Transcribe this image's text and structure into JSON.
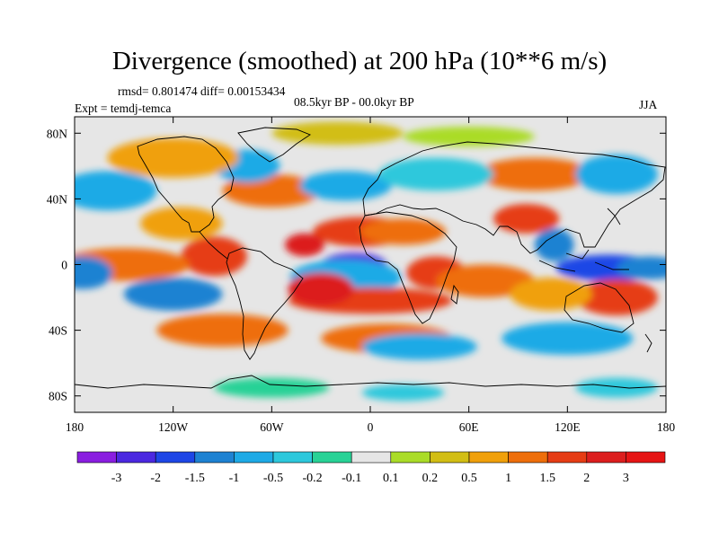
{
  "title": "Divergence (smoothed) at 200 hPa (10**6 m/s)",
  "stats": "rmsd= 0.801474 diff= 0.00153434",
  "experiment": "Expt = temdj-temca",
  "period": "08.5kyr BP - 00.0kyr BP",
  "season": "JJA",
  "axes": {
    "x_ticks": [
      "180",
      "120W",
      "60W",
      "0",
      "60E",
      "120E",
      "180"
    ],
    "x_values": [
      -180,
      -120,
      -60,
      0,
      60,
      120,
      180
    ],
    "y_ticks": [
      "80N",
      "40N",
      "0",
      "40S",
      "80S"
    ],
    "y_values": [
      80,
      40,
      0,
      -40,
      -80
    ],
    "lon_range": [
      -180,
      180
    ],
    "lat_range": [
      -90,
      90
    ]
  },
  "colorbar": {
    "labels": [
      "-3",
      "-2",
      "-1.5",
      "-1",
      "-0.5",
      "-0.2",
      "-0.1",
      "0.1",
      "0.2",
      "0.5",
      "1",
      "1.5",
      "2",
      "3"
    ],
    "colors": [
      "#8a1ee0",
      "#4b28e0",
      "#1e46e6",
      "#1e82d2",
      "#1eaae6",
      "#2dc8dc",
      "#28d296",
      "#e6e6e6",
      "#aadc28",
      "#d2be14",
      "#f0a00a",
      "#ee6e0a",
      "#e63c14",
      "#dc1e1e",
      "#e61414"
    ]
  },
  "field_regions": [
    {
      "lon": -10,
      "lat": 0,
      "sx": 20,
      "sy": 7,
      "level": 1
    },
    {
      "lon": -15,
      "lat": -8,
      "sx": 34,
      "sy": 11,
      "level": 4
    },
    {
      "lon": -5,
      "lat": 20,
      "sx": 30,
      "sy": 9,
      "level": 12
    },
    {
      "lon": -40,
      "lat": 12,
      "sx": 12,
      "sy": 7,
      "level": 13
    },
    {
      "lon": 20,
      "lat": 20,
      "sx": 26,
      "sy": 8,
      "level": 11
    },
    {
      "lon": 0,
      "lat": -22,
      "sx": 50,
      "sy": 8,
      "level": 12
    },
    {
      "lon": -30,
      "lat": -15,
      "sx": 20,
      "sy": 10,
      "level": 13
    },
    {
      "lon": 40,
      "lat": -5,
      "sx": 18,
      "sy": 10,
      "level": 12
    },
    {
      "lon": 70,
      "lat": -10,
      "sx": 30,
      "sy": 10,
      "level": 11
    },
    {
      "lon": 95,
      "lat": 28,
      "sx": 20,
      "sy": 9,
      "level": 12
    },
    {
      "lon": 112,
      "lat": 12,
      "sx": 12,
      "sy": 10,
      "level": 3
    },
    {
      "lon": 145,
      "lat": -2,
      "sx": 32,
      "sy": 8,
      "level": 2
    },
    {
      "lon": 170,
      "lat": -2,
      "sx": 20,
      "sy": 7,
      "level": 3
    },
    {
      "lon": 150,
      "lat": -20,
      "sx": 25,
      "sy": 11,
      "level": 12
    },
    {
      "lon": 110,
      "lat": -18,
      "sx": 25,
      "sy": 10,
      "level": 10
    },
    {
      "lon": -95,
      "lat": 5,
      "sx": 20,
      "sy": 12,
      "level": 12
    },
    {
      "lon": -115,
      "lat": 25,
      "sx": 25,
      "sy": 10,
      "level": 10
    },
    {
      "lon": -150,
      "lat": 0,
      "sx": 40,
      "sy": 10,
      "level": 11
    },
    {
      "lon": -175,
      "lat": -5,
      "sx": 18,
      "sy": 10,
      "level": 3
    },
    {
      "lon": -120,
      "lat": -18,
      "sx": 30,
      "sy": 10,
      "level": 3
    },
    {
      "lon": -90,
      "lat": -40,
      "sx": 40,
      "sy": 10,
      "level": 11
    },
    {
      "lon": 10,
      "lat": -45,
      "sx": 40,
      "sy": 9,
      "level": 11
    },
    {
      "lon": 30,
      "lat": -50,
      "sx": 35,
      "sy": 8,
      "level": 4
    },
    {
      "lon": 120,
      "lat": -45,
      "sx": 40,
      "sy": 10,
      "level": 4
    },
    {
      "lon": 100,
      "lat": 55,
      "sx": 35,
      "sy": 10,
      "level": 11
    },
    {
      "lon": -60,
      "lat": 45,
      "sx": 30,
      "sy": 10,
      "level": 11
    },
    {
      "lon": -75,
      "lat": 60,
      "sx": 20,
      "sy": 10,
      "level": 4
    },
    {
      "lon": -15,
      "lat": 48,
      "sx": 28,
      "sy": 9,
      "level": 4
    },
    {
      "lon": 40,
      "lat": 55,
      "sx": 35,
      "sy": 10,
      "level": 5
    },
    {
      "lon": 150,
      "lat": 55,
      "sx": 25,
      "sy": 12,
      "level": 4
    },
    {
      "lon": -160,
      "lat": 45,
      "sx": 30,
      "sy": 12,
      "level": 4
    },
    {
      "lon": -120,
      "lat": 65,
      "sx": 40,
      "sy": 12,
      "level": 10
    },
    {
      "lon": -20,
      "lat": 80,
      "sx": 40,
      "sy": 7,
      "level": 9
    },
    {
      "lon": 60,
      "lat": 78,
      "sx": 40,
      "sy": 6,
      "level": 8
    },
    {
      "lon": -60,
      "lat": -75,
      "sx": 35,
      "sy": 6,
      "level": 6
    },
    {
      "lon": 20,
      "lat": -78,
      "sx": 25,
      "sy": 5,
      "level": 5
    },
    {
      "lon": 150,
      "lat": -75,
      "sx": 25,
      "sy": 6,
      "level": 5
    }
  ]
}
